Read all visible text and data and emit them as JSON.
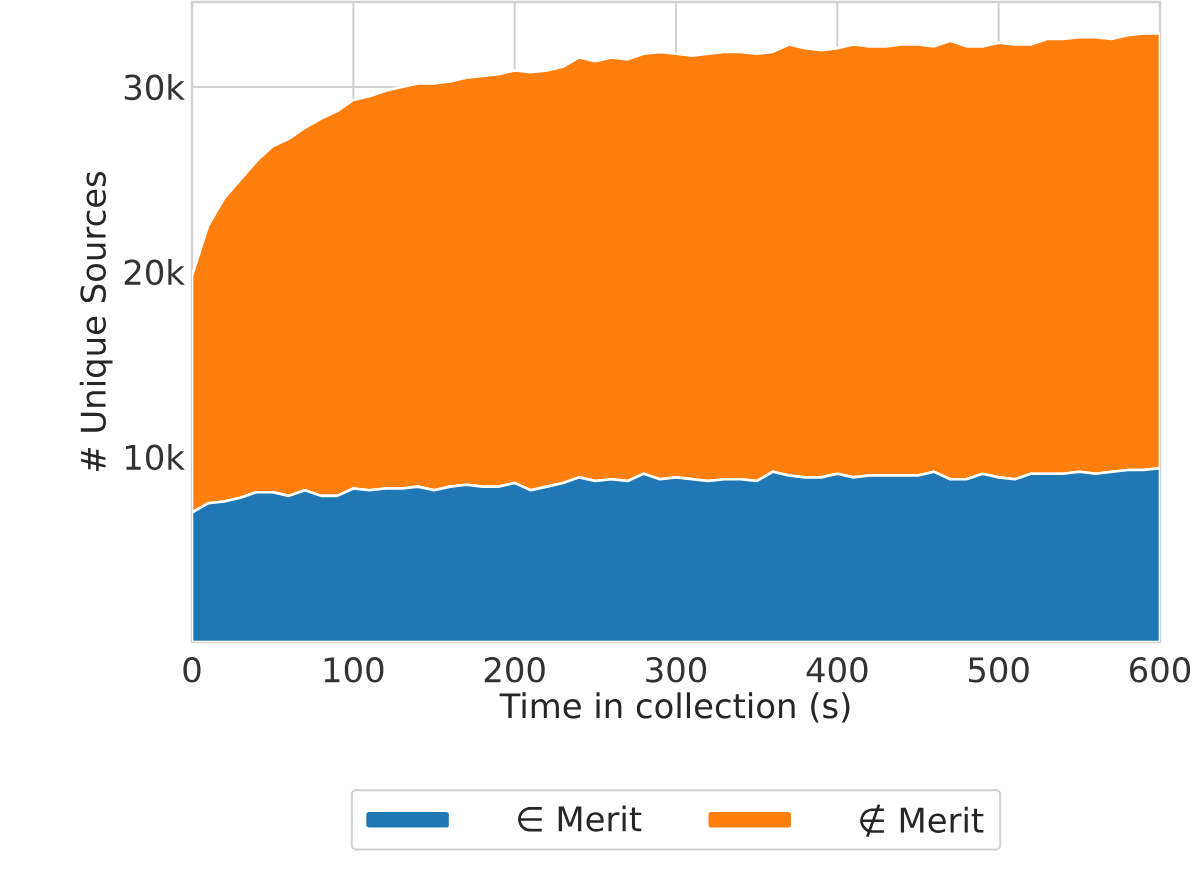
{
  "chart_data": {
    "type": "area",
    "stacked": true,
    "xlabel": "Time in collection (s)",
    "ylabel": "# Unique Sources",
    "x": [
      0,
      10,
      20,
      30,
      40,
      50,
      60,
      70,
      80,
      90,
      100,
      110,
      120,
      130,
      140,
      150,
      160,
      170,
      180,
      190,
      200,
      210,
      220,
      230,
      240,
      250,
      260,
      270,
      280,
      290,
      300,
      310,
      320,
      330,
      340,
      350,
      360,
      370,
      380,
      390,
      400,
      410,
      420,
      430,
      440,
      450,
      460,
      470,
      480,
      490,
      500,
      510,
      520,
      530,
      540,
      550,
      560,
      570,
      580,
      590,
      600
    ],
    "series": [
      {
        "name": "∈ Merit",
        "color": "#1f77b4",
        "values": [
          7000,
          7500,
          7600,
          7800,
          8100,
          8100,
          7900,
          8200,
          7900,
          7900,
          8300,
          8200,
          8300,
          8300,
          8400,
          8200,
          8400,
          8500,
          8400,
          8400,
          8600,
          8200,
          8400,
          8600,
          8900,
          8700,
          8800,
          8700,
          9100,
          8800,
          8900,
          8800,
          8700,
          8800,
          8800,
          8700,
          9200,
          9000,
          8900,
          8900,
          9100,
          8900,
          9000,
          9000,
          9000,
          9000,
          9200,
          8800,
          8800,
          9100,
          8900,
          8800,
          9100,
          9100,
          9100,
          9200,
          9100,
          9200,
          9300,
          9300,
          9400
        ]
      },
      {
        "name": "∉ Merit",
        "color": "#ff7f0e",
        "values": [
          12800,
          15000,
          16400,
          17200,
          17900,
          18700,
          19300,
          19600,
          20400,
          20800,
          21000,
          21300,
          21500,
          21700,
          21800,
          22000,
          21900,
          22000,
          22200,
          22300,
          22300,
          22600,
          22500,
          22500,
          22700,
          22700,
          22800,
          22800,
          22700,
          23100,
          22900,
          22900,
          23100,
          23100,
          23100,
          23100,
          22700,
          23300,
          23200,
          23100,
          23000,
          23400,
          23200,
          23200,
          23300,
          23300,
          23000,
          23700,
          23400,
          23100,
          23500,
          23500,
          23200,
          23500,
          23500,
          23500,
          23600,
          23400,
          23500,
          23600,
          23500
        ]
      }
    ],
    "xlim": [
      0,
      600
    ],
    "ylim": [
      0,
      34600
    ],
    "xticks": [
      0,
      100,
      200,
      300,
      400,
      500,
      600
    ],
    "yticks": [
      {
        "value": 10000,
        "label": "10k"
      },
      {
        "value": 20000,
        "label": "20k"
      },
      {
        "value": 30000,
        "label": "30k"
      }
    ],
    "grid": true,
    "legend": "bottom"
  }
}
